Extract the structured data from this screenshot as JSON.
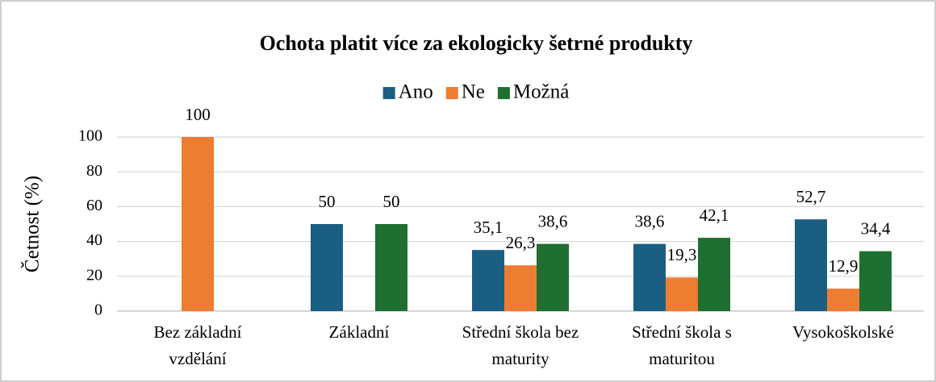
{
  "chart_data": {
    "type": "bar",
    "title": "Ochota platit více za ekologicky šetrné produkty",
    "y_label": "Četnost (%)",
    "categories": [
      "Bez základní vzdělání",
      "Základní",
      "Střední škola bez maturity",
      "Střední škola s maturitou",
      "Vysokoškolské"
    ],
    "series": [
      {
        "name": "Ano",
        "color": "#1b5e83",
        "values": [
          0,
          50,
          35.1,
          38.6,
          52.7
        ],
        "value_labels": [
          null,
          "50",
          "35,1",
          "38,6",
          "52,7"
        ]
      },
      {
        "name": "Ne",
        "color": "#ed7d31",
        "values": [
          100,
          0,
          26.3,
          19.3,
          12.9
        ],
        "value_labels": [
          "100",
          null,
          "26,3",
          "19,3",
          "12,9"
        ]
      },
      {
        "name": "Možná",
        "color": "#1e6f31",
        "values": [
          0,
          50,
          38.6,
          42.1,
          34.4
        ],
        "value_labels": [
          null,
          "50",
          "38,6",
          "42,1",
          "34,4"
        ]
      }
    ],
    "ylim": [
      0,
      100
    ],
    "yticks": [
      0,
      20,
      40,
      60,
      80,
      100
    ],
    "grid": true,
    "legend": "top"
  }
}
